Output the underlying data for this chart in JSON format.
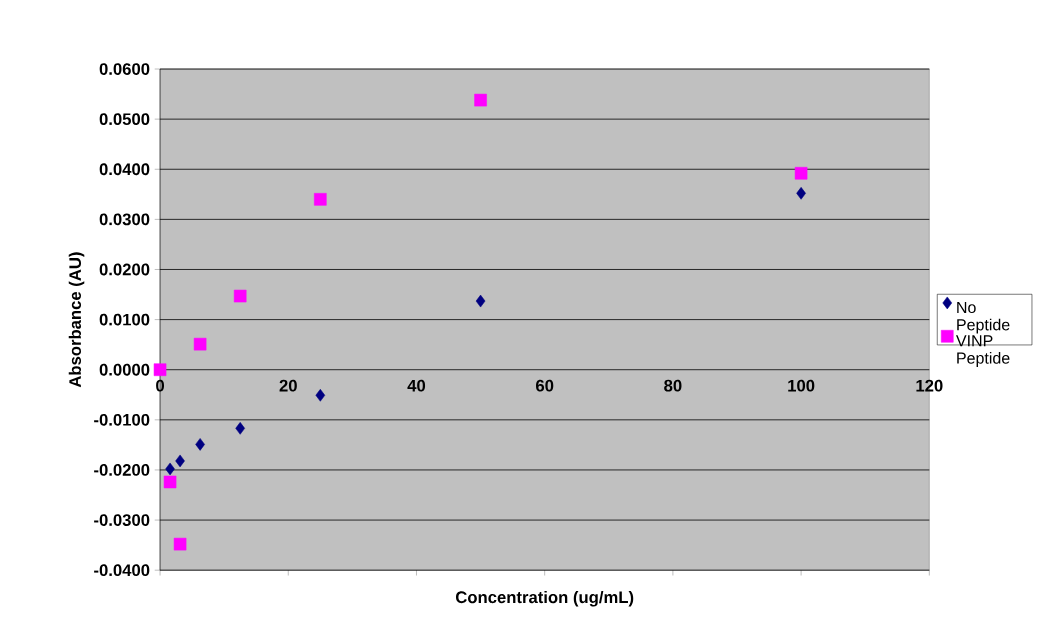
{
  "chart_data": {
    "type": "scatter",
    "xlabel": "Concentration (ug/mL)",
    "ylabel": "Absorbance (AU)",
    "series": [
      {
        "name": "No Peptide",
        "color": "#000080",
        "marker": "diamond",
        "x": [
          1.5625,
          3.125,
          6.25,
          12.5,
          25,
          50,
          100
        ],
        "values": [
          -0.0198,
          -0.0182,
          -0.0149,
          -0.0117,
          -0.0051,
          0.0137,
          0.0352
        ]
      },
      {
        "name": "VINP Peptide",
        "color": "#ff00ff",
        "marker": "square",
        "x": [
          0,
          1.5625,
          3.125,
          6.25,
          12.5,
          25,
          50,
          100
        ],
        "values": [
          0.0,
          -0.0224,
          -0.0348,
          0.0051,
          0.0147,
          0.034,
          0.0538,
          0.0392
        ]
      }
    ],
    "xlim": [
      0,
      120
    ],
    "xticks": [
      0,
      20,
      40,
      60,
      80,
      100,
      120
    ],
    "ylim": [
      -0.04,
      0.06
    ],
    "yticks": [
      {
        "value": -0.04,
        "label": "-0.0400"
      },
      {
        "value": -0.03,
        "label": "-0.0300"
      },
      {
        "value": -0.02,
        "label": "-0.0200"
      },
      {
        "value": -0.01,
        "label": "-0.0100"
      },
      {
        "value": 0,
        "label": "0.0000"
      },
      {
        "value": 0.01,
        "label": "0.0100"
      },
      {
        "value": 0.02,
        "label": "0.0200"
      },
      {
        "value": 0.03,
        "label": "0.0300"
      },
      {
        "value": 0.04,
        "label": "0.0400"
      },
      {
        "value": 0.05,
        "label": "0.0500"
      },
      {
        "value": 0.06,
        "label": "0.0600"
      }
    ],
    "grid": "y",
    "legend": "right"
  }
}
